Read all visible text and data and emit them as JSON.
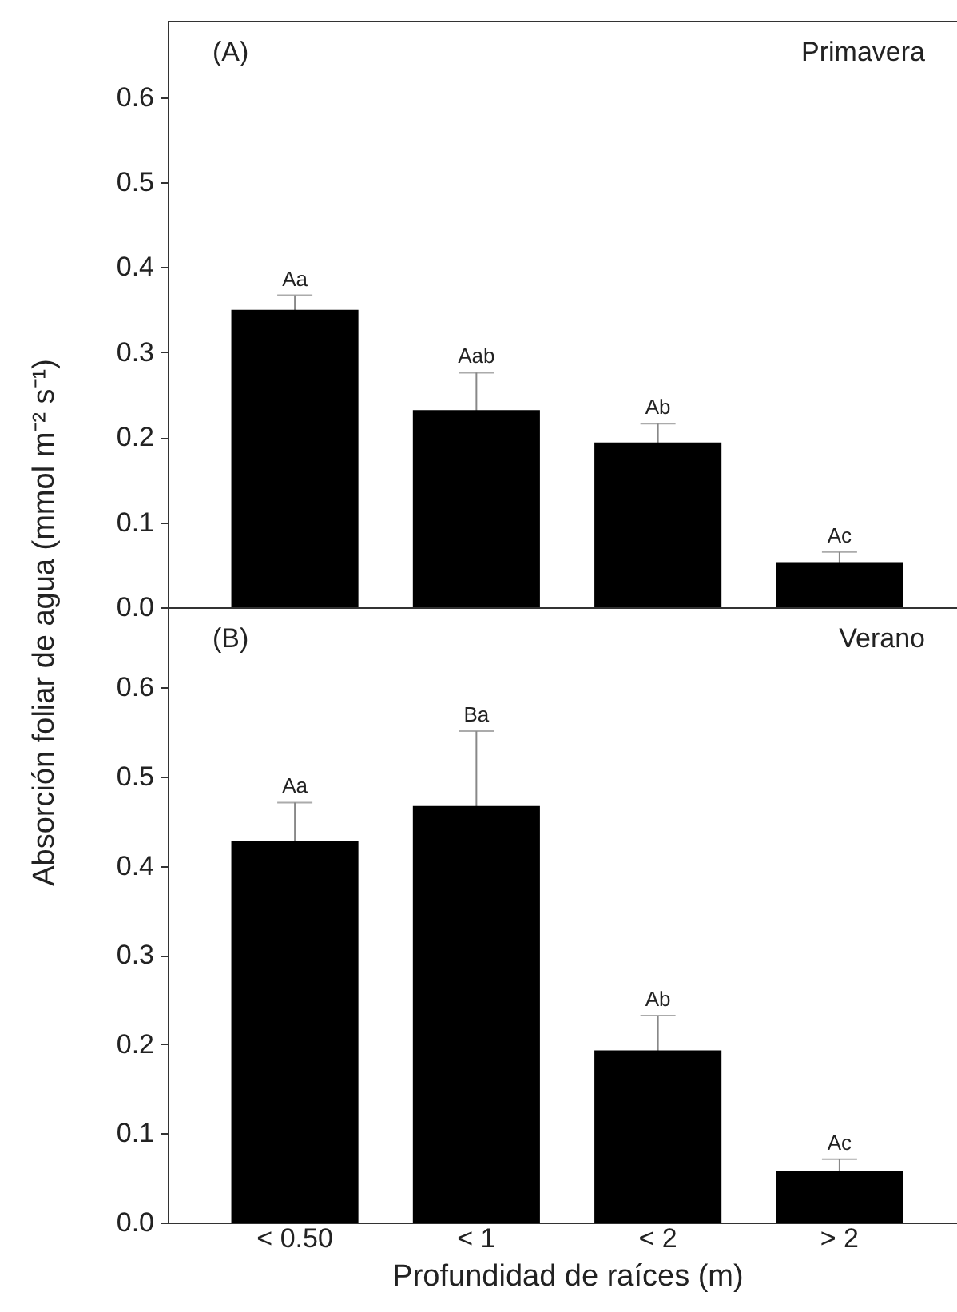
{
  "chart_data": [
    {
      "type": "bar",
      "ylabel": "Absorción foliar de agua  (mmol m⁻² s⁻¹)",
      "categories": [
        "< 0.50",
        "< 1",
        "< 2",
        "> 2"
      ],
      "tick_labels": "y",
      "series": [
        {
          "color": "#000000",
          "values": [
            0.35,
            0.232,
            0.194,
            0.053
          ],
          "errors": [
            0.017,
            0.044,
            0.022,
            0.012
          ]
        }
      ],
      "ylim": [
        0,
        0.69
      ],
      "yticks": [
        {
          "value": 0,
          "label": "0.0"
        },
        0.1,
        0.2,
        0.3,
        0.4,
        0.5,
        0.6
      ],
      "annotations": [
        "(A)",
        "Primavera",
        {
          "text": "Aa",
          "x": "< 0.50",
          "y": 0.367
        },
        {
          "text": "Aab",
          "x": "< 1",
          "y": 0.276
        },
        {
          "text": "Ab",
          "x": "< 2",
          "y": 0.216
        },
        {
          "text": "Ac",
          "x": "> 2",
          "y": 0.065
        }
      ]
    },
    {
      "type": "bar",
      "xlabel": "Profundidad de raíces (m)",
      "categories": [
        "< 0.50",
        "< 1",
        "< 2",
        "> 2"
      ],
      "series": [
        {
          "color": "#000000",
          "values": [
            0.428,
            0.467,
            0.193,
            0.058
          ],
          "errors": [
            0.043,
            0.084,
            0.039,
            0.013
          ]
        }
      ],
      "ylim": [
        0,
        0.69
      ],
      "yticks": [
        {
          "value": 0,
          "label": "0.0"
        },
        0.1,
        0.2,
        0.3,
        0.4,
        0.5,
        0.6
      ],
      "annotations": [
        "(B)",
        "Verano",
        {
          "text": "Aa",
          "x": "< 0.50",
          "y": 0.471
        },
        {
          "text": "Ba",
          "x": "< 1",
          "y": 0.551
        },
        {
          "text": "Ab",
          "x": "< 2",
          "y": 0.232
        },
        {
          "text": "Ac",
          "x": "> 2",
          "y": 0.071
        }
      ]
    }
  ]
}
